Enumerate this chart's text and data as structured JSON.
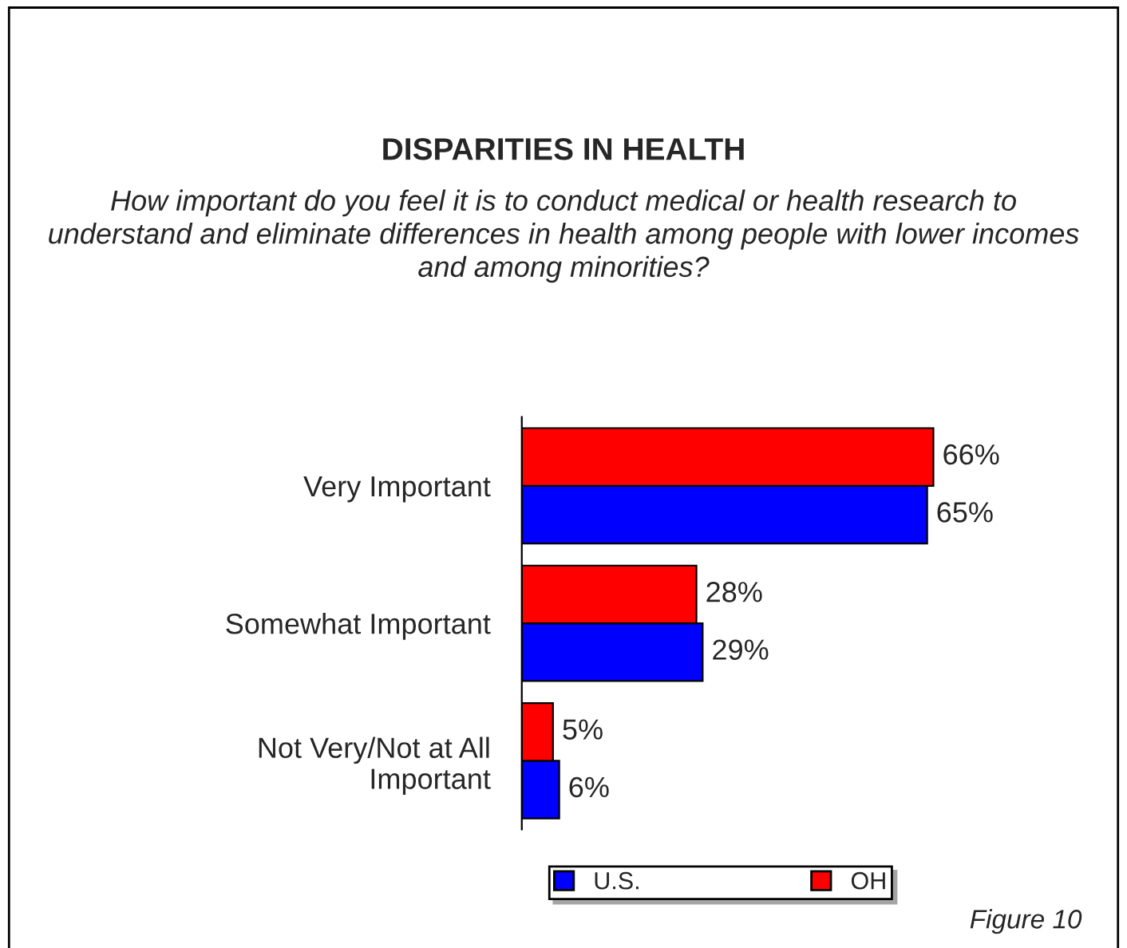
{
  "chart_data": {
    "type": "bar",
    "orientation": "horizontal",
    "title": "DISPARITIES IN HEALTH",
    "subtitle": "How important do you feel it is to conduct medical or health research to understand and eliminate differences in health among people with lower incomes and among minorities?",
    "categories": [
      "Very Important",
      "Somewhat Important",
      "Not Very/Not at All\nImportant"
    ],
    "series": [
      {
        "name": "U.S.",
        "color": "#0000ff",
        "values": [
          65,
          29,
          6
        ],
        "value_labels": [
          "65%",
          "29%",
          "6%"
        ]
      },
      {
        "name": "OH",
        "color": "#ff0000",
        "values": [
          66,
          28,
          5
        ],
        "value_labels": [
          "66%",
          "28%",
          "5%"
        ]
      }
    ],
    "tick_labels": "y",
    "grid": false,
    "legend": "bottom",
    "annotations": [
      "Figure 10"
    ]
  }
}
